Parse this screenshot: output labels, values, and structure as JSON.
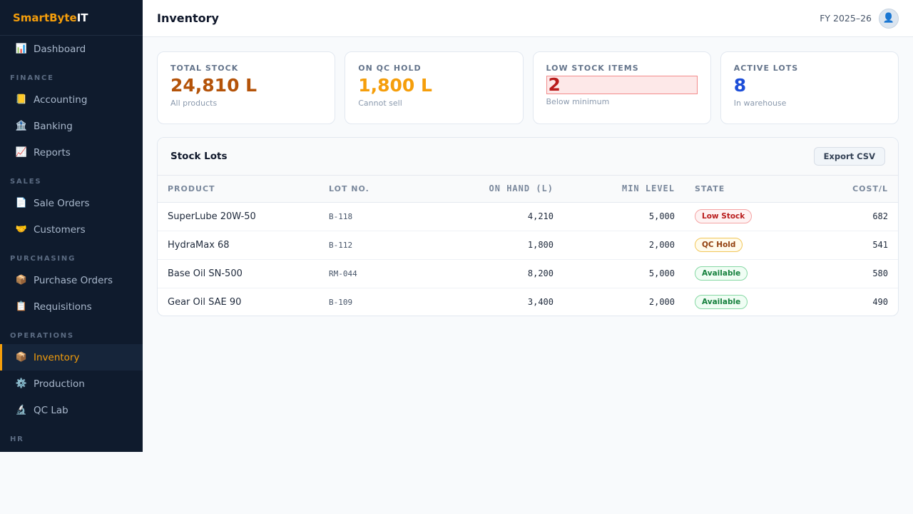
{
  "brand": {
    "part1": "SmartByte",
    "part2": "IT"
  },
  "sidebar": {
    "dashboard": {
      "icon": "📊",
      "label": "Dashboard"
    },
    "sections": {
      "finance": "FINANCE",
      "sales": "SALES",
      "purchasing": "PURCHASING",
      "operations": "OPERATIONS",
      "hr": "HR"
    },
    "items": {
      "accounting": {
        "icon": "📒",
        "label": "Accounting"
      },
      "banking": {
        "icon": "🏦",
        "label": "Banking"
      },
      "reports": {
        "icon": "📈",
        "label": "Reports"
      },
      "sale_orders": {
        "icon": "📄",
        "label": "Sale Orders"
      },
      "customers": {
        "icon": "🤝",
        "label": "Customers"
      },
      "purchase_orders": {
        "icon": "📦",
        "label": "Purchase Orders"
      },
      "requisitions": {
        "icon": "📋",
        "label": "Requisitions"
      },
      "inventory": {
        "icon": "📦",
        "label": "Inventory"
      },
      "production": {
        "icon": "⚙️",
        "label": "Production"
      },
      "qc_lab": {
        "icon": "🔬",
        "label": "QC Lab"
      }
    }
  },
  "header": {
    "title": "Inventory",
    "fiscal_year": "FY 2025–26",
    "avatar_icon": "👤"
  },
  "stats": {
    "total_stock": {
      "label": "TOTAL STOCK",
      "value": "24,810 L",
      "sub": "All products"
    },
    "qc_hold": {
      "label": "ON QC HOLD",
      "value": "1,800 L",
      "sub": "Cannot sell"
    },
    "low_stock": {
      "label": "LOW STOCK ITEMS",
      "value": "2",
      "sub": "Below minimum"
    },
    "active_lots": {
      "label": "ACTIVE LOTS",
      "value": "8",
      "sub": "In warehouse"
    }
  },
  "table": {
    "title": "Stock Lots",
    "export_label": "Export CSV",
    "headers": {
      "product": "PRODUCT",
      "lot": "LOT NO.",
      "on_hand": "ON HAND (L)",
      "min": "MIN LEVEL",
      "state": "STATE",
      "cost": "COST/L"
    },
    "rows": [
      {
        "product": "SuperLube 20W-50",
        "lot": "B-118",
        "on_hand": "4,210",
        "min": "5,000",
        "state": "Low Stock",
        "cost": "682"
      },
      {
        "product": "HydraMax 68",
        "lot": "B-112",
        "on_hand": "1,800",
        "min": "2,000",
        "state": "QC Hold",
        "cost": "541"
      },
      {
        "product": "Base Oil SN-500",
        "lot": "RM-044",
        "on_hand": "8,200",
        "min": "5,000",
        "state": "Available",
        "cost": "580"
      },
      {
        "product": "Gear Oil SAE 90",
        "lot": "B-109",
        "on_hand": "3,400",
        "min": "2,000",
        "state": "Available",
        "cost": "490"
      }
    ]
  }
}
